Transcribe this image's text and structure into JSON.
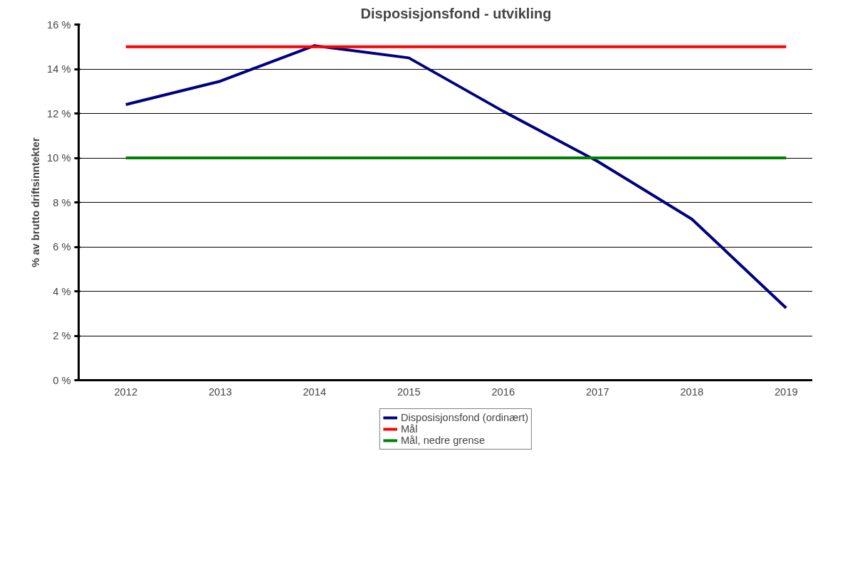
{
  "chart_data": {
    "type": "line",
    "title": "Disposisjonsfond - utvikling",
    "ylabel": "% av brutto driftsinntekter",
    "categories": [
      "2012",
      "2013",
      "2014",
      "2015",
      "2016",
      "2017",
      "2018",
      "2019"
    ],
    "series": [
      {
        "name": "Disposisjonsfond (ordinært)",
        "color": "#000080",
        "values": [
          12.4,
          13.45,
          15.05,
          14.5,
          12.1,
          9.85,
          7.25,
          3.25
        ]
      },
      {
        "name": "Mål",
        "color": "#ff0000",
        "values": [
          15,
          15,
          15,
          15,
          15,
          15,
          15,
          15
        ]
      },
      {
        "name": "Mål, nedre grense",
        "color": "#008000",
        "values": [
          10,
          10,
          10,
          10,
          10,
          10,
          10,
          10
        ]
      }
    ],
    "ylim": [
      0,
      16
    ],
    "yticks": [
      {
        "value": 0,
        "label": "0 %"
      },
      {
        "value": 2,
        "label": "2 %"
      },
      {
        "value": 4,
        "label": "4 %"
      },
      {
        "value": 6,
        "label": "6 %"
      },
      {
        "value": 8,
        "label": "8 %"
      },
      {
        "value": 10,
        "label": "10 %"
      },
      {
        "value": 12,
        "label": "12 %"
      },
      {
        "value": 14,
        "label": "14 %"
      },
      {
        "value": 16,
        "label": "16 %"
      }
    ],
    "grid": "y",
    "legend": "bottom",
    "marker": "none",
    "line_style": "solid"
  }
}
